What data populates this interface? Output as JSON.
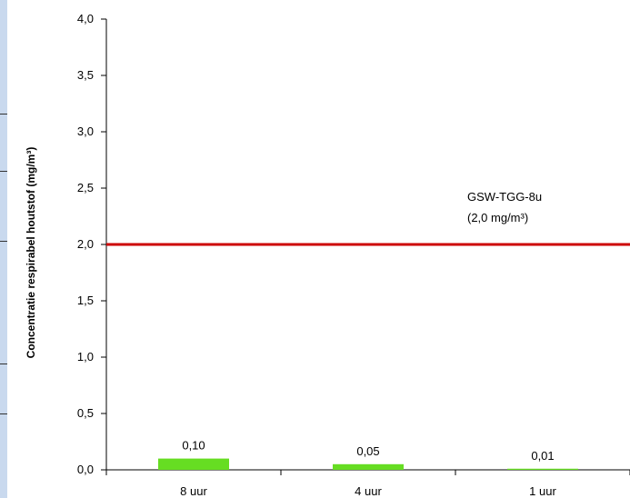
{
  "chart_data": {
    "type": "bar",
    "categories": [
      "8 uur",
      "4 uur",
      "1 uur"
    ],
    "values": [
      0.1,
      0.05,
      0.01
    ],
    "value_labels": [
      "0,10",
      "0,05",
      "0,01"
    ],
    "ylabel": "Concentratie respirabel houtstof (mg/m³)",
    "xlabel": "",
    "ylim": [
      0,
      4.0
    ],
    "yticks": [
      0,
      0.5,
      1.0,
      1.5,
      2.0,
      2.5,
      3.0,
      3.5,
      4.0
    ],
    "ytick_labels": [
      "0,0",
      "0,5",
      "1,0",
      "1,5",
      "2,0",
      "2,5",
      "3,0",
      "3,5",
      "4,0"
    ],
    "grid": false,
    "bar_color": "#66dd22",
    "reference_line": {
      "value": 2.0,
      "color": "#cc0000",
      "label_line1": "GSW-TGG-8u",
      "label_line2": "(2,0 mg/m³)"
    }
  }
}
